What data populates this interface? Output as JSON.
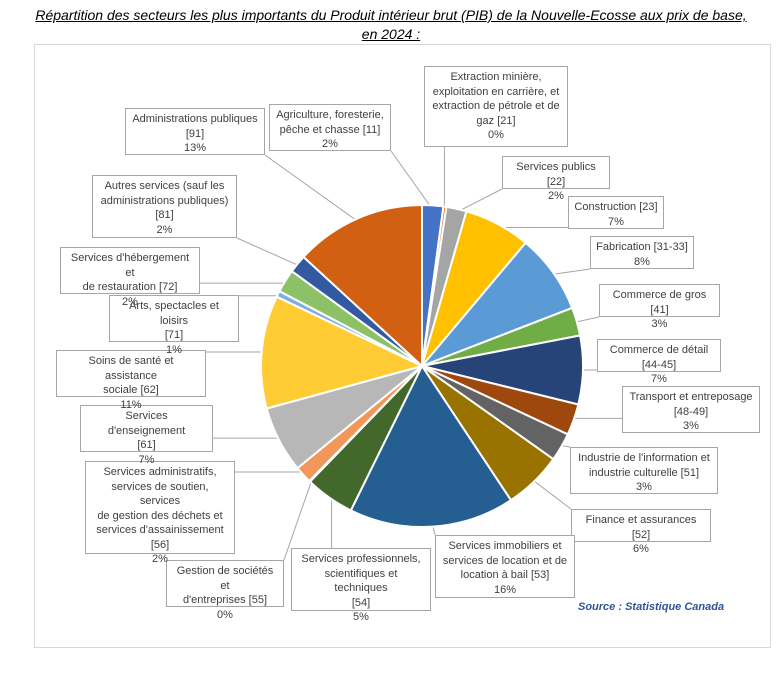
{
  "chart_data": {
    "type": "pie",
    "title": "Répartition des secteurs les plus importants du Produit intérieur brut (PIB) de la Nouvelle-Ecosse aux prix de base, en 2024 :",
    "source": "Source : Statistique Canada",
    "slices": [
      {
        "label": "Agriculture, foresterie, pêche et chasse [11]",
        "pct_label": "2%",
        "value": 2.1,
        "color": "#4472c4"
      },
      {
        "label": "Extraction minière, exploitation en carrière, et extraction de pétrole et de gaz [21]",
        "pct_label": "0%",
        "value": 0.3,
        "color": "#ed7d31"
      },
      {
        "label": "Services publics [22]",
        "pct_label": "2%",
        "value": 2.0,
        "color": "#a5a5a5"
      },
      {
        "label": "Construction [23]",
        "pct_label": "7%",
        "value": 6.6,
        "color": "#ffc000"
      },
      {
        "label": "Fabrication [31-33]",
        "pct_label": "8%",
        "value": 7.9,
        "color": "#5b9bd5"
      },
      {
        "label": "Commerce de gros [41]",
        "pct_label": "3%",
        "value": 2.8,
        "color": "#70ad47"
      },
      {
        "label": "Commerce de détail [44-45]",
        "pct_label": "7%",
        "value": 6.8,
        "color": "#264478"
      },
      {
        "label": "Transport et entreposage [48-49]",
        "pct_label": "3%",
        "value": 3.1,
        "color": "#9e480e"
      },
      {
        "label": "Industrie de l'information et industrie culturelle [51]",
        "pct_label": "3%",
        "value": 2.8,
        "color": "#636363"
      },
      {
        "label": "Finance et assurances [52]",
        "pct_label": "6%",
        "value": 5.8,
        "color": "#997300"
      },
      {
        "label": "Services immobiliers et services de location et de location à bail [53]",
        "pct_label": "16%",
        "value": 16.4,
        "color": "#255e91"
      },
      {
        "label": "Services professionnels, scientifiques et techniques [54]",
        "pct_label": "5%",
        "value": 4.9,
        "color": "#43682b"
      },
      {
        "label": "Gestion de sociétés et d'entreprises [55]",
        "pct_label": "0%",
        "value": 0.1,
        "color": "#698ed0"
      },
      {
        "label": "Services administratifs, services de soutien, services de gestion des déchets et services d'assainissement [56]",
        "pct_label": "2%",
        "value": 1.7,
        "color": "#f1975a"
      },
      {
        "label": "Services d'enseignement [61]",
        "pct_label": "7%",
        "value": 6.6,
        "color": "#b7b7b7"
      },
      {
        "label": "Soins de santé et assistance sociale [62]",
        "pct_label": "11%",
        "value": 11.2,
        "color": "#ffcd33"
      },
      {
        "label": "Arts, spectacles et loisirs [71]",
        "pct_label": "1%",
        "value": 0.6,
        "color": "#7cafdd"
      },
      {
        "label": "Services d'hébergement et de restauration [72]",
        "pct_label": "2%",
        "value": 2.3,
        "color": "#8cc168"
      },
      {
        "label": "Autres services (sauf les administrations publiques) [81]",
        "pct_label": "2%",
        "value": 1.8,
        "color": "#335aa1"
      },
      {
        "label": "Administrations publiques [91]",
        "pct_label": "13%",
        "value": 13.0,
        "color": "#d26012"
      }
    ],
    "callouts": [
      {
        "lines": [
          "Agriculture, foresterie,",
          "pêche et chasse [11]",
          "2%"
        ]
      },
      {
        "lines": [
          "Extraction minière,",
          "exploitation en carrière, et",
          "extraction de pétrole et de",
          "gaz [21]",
          "0%"
        ]
      },
      {
        "lines": [
          "Services publics [22]",
          "2%"
        ]
      },
      {
        "lines": [
          "Construction [23]",
          "7%"
        ]
      },
      {
        "lines": [
          "Fabrication [31-33]",
          "8%"
        ]
      },
      {
        "lines": [
          "Commerce de gros [41]",
          "3%"
        ]
      },
      {
        "lines": [
          "Commerce de détail [44-45]",
          "7%"
        ]
      },
      {
        "lines": [
          "Transport et entreposage",
          "[48-49]",
          "3%"
        ]
      },
      {
        "lines": [
          "Industrie de l'information et",
          "industrie culturelle [51]",
          "3%"
        ]
      },
      {
        "lines": [
          "Finance et assurances [52]",
          "6%"
        ]
      },
      {
        "lines": [
          "Services immobiliers et",
          "services de location et de",
          "location à bail [53]",
          "16%"
        ]
      },
      {
        "lines": [
          "Services professionnels,",
          "scientifiques et techniques",
          "[54]",
          "5%"
        ]
      },
      {
        "lines": [
          "Gestion de sociétés et",
          "d'entreprises [55]",
          "0%"
        ]
      },
      {
        "lines": [
          "Services administratifs,",
          "services de soutien, services",
          "de gestion des déchets et",
          "services d'assainissement",
          "[56]",
          "2%"
        ]
      },
      {
        "lines": [
          "Services d'enseignement",
          "[61]",
          "7%"
        ]
      },
      {
        "lines": [
          "Soins de santé et assistance",
          "sociale [62]",
          "11%"
        ]
      },
      {
        "lines": [
          "Arts, spectacles et loisirs",
          "[71]",
          "1%"
        ]
      },
      {
        "lines": [
          "Services d'hébergement et",
          "de restauration [72]",
          "2%"
        ]
      },
      {
        "lines": [
          "Autres services (sauf les",
          "administrations publiques)",
          "[81]",
          "2%"
        ]
      },
      {
        "lines": [
          "Administrations publiques",
          "[91]",
          "13%"
        ]
      }
    ]
  }
}
